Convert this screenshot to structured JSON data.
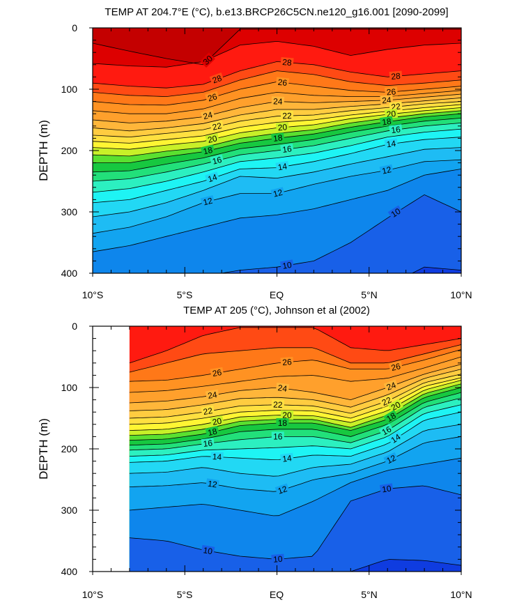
{
  "colors": {
    "fill_levels": [
      {
        "min": 30,
        "color": "#c40000"
      },
      {
        "min": 29,
        "color": "#dd0000"
      },
      {
        "min": 28,
        "color": "#ff1a10"
      },
      {
        "min": 27,
        "color": "#ff4a14"
      },
      {
        "min": 26,
        "color": "#ff7818"
      },
      {
        "min": 25,
        "color": "#ff9222"
      },
      {
        "min": 24,
        "color": "#ffa02c"
      },
      {
        "min": 23,
        "color": "#ffb63a"
      },
      {
        "min": 22,
        "color": "#ffcc40"
      },
      {
        "min": 21,
        "color": "#ffe040"
      },
      {
        "min": 20,
        "color": "#fff533"
      },
      {
        "min": 19,
        "color": "#c8f028"
      },
      {
        "min": 18,
        "color": "#5ae030"
      },
      {
        "min": 17,
        "color": "#17c840"
      },
      {
        "min": 16,
        "color": "#22e07a"
      },
      {
        "min": 15,
        "color": "#2cf0c0"
      },
      {
        "min": 14,
        "color": "#1ef4f4"
      },
      {
        "min": 13,
        "color": "#22d8f4"
      },
      {
        "min": 12,
        "color": "#1ebcf4"
      },
      {
        "min": 11,
        "color": "#12a4f0"
      },
      {
        "min": 10,
        "color": "#0e86ec"
      },
      {
        "min": 9,
        "color": "#1860e8"
      },
      {
        "min": 0,
        "color": "#0f3ce0"
      }
    ],
    "contour_line": "#000000"
  },
  "chart_data": [
    {
      "type": "contour",
      "title": "TEMP AT 204.7°E (°C), b.e13.BRCP26C5CN.ne120_g16.001 [2090-2099]",
      "ylabel": "DEPTH (m)",
      "xlabel": "",
      "x_ticks": [
        "10°S",
        "5°S",
        "EQ",
        "5°N",
        "10°N"
      ],
      "y_ticks": [
        "0",
        "100",
        "200",
        "300",
        "400"
      ],
      "xlim": [
        -10,
        10
      ],
      "ylim": [
        0,
        400
      ],
      "y_inverted": true,
      "data_start_lat": -10,
      "contour_interval": 1,
      "contour_label_values": [
        30,
        28,
        26,
        24,
        22,
        20,
        18,
        16,
        14,
        12,
        10
      ],
      "isotherm_depths": {
        "lat": [
          -10,
          -8,
          -6,
          -4,
          -2,
          0,
          2,
          4,
          6,
          8,
          10
        ],
        "levels": {
          "30": [
            25,
            38,
            50,
            60,
            2,
            2,
            2,
            2,
            2,
            2,
            2
          ],
          "29": [
            58,
            62,
            64,
            55,
            28,
            22,
            30,
            45,
            35,
            28,
            25
          ],
          "28": [
            90,
            95,
            98,
            92,
            70,
            55,
            60,
            72,
            80,
            75,
            70
          ],
          "27": [
            105,
            110,
            112,
            105,
            85,
            70,
            76,
            88,
            94,
            90,
            85
          ],
          "26": [
            120,
            125,
            126,
            118,
            100,
            88,
            95,
            102,
            105,
            100,
            95
          ],
          "25": [
            135,
            140,
            140,
            132,
            115,
            105,
            110,
            112,
            112,
            107,
            102
          ],
          "24": [
            150,
            155,
            152,
            145,
            130,
            120,
            122,
            120,
            118,
            113,
            108
          ],
          "23": [
            163,
            168,
            163,
            156,
            142,
            133,
            133,
            128,
            124,
            119,
            114
          ],
          "22": [
            175,
            178,
            172,
            166,
            152,
            144,
            142,
            135,
            130,
            124,
            120
          ],
          "21": [
            185,
            188,
            182,
            176,
            162,
            154,
            150,
            142,
            136,
            130,
            125
          ],
          "20": [
            195,
            198,
            191,
            185,
            171,
            163,
            158,
            148,
            141,
            135,
            130
          ],
          "19": [
            207,
            209,
            201,
            195,
            180,
            172,
            166,
            155,
            147,
            140,
            135
          ],
          "18": [
            220,
            220,
            210,
            202,
            188,
            180,
            173,
            162,
            153,
            145,
            140
          ],
          "17": [
            235,
            233,
            222,
            212,
            197,
            190,
            182,
            170,
            160,
            152,
            147
          ],
          "16": [
            250,
            246,
            235,
            222,
            207,
            200,
            192,
            180,
            168,
            160,
            155
          ],
          "15": [
            268,
            262,
            250,
            235,
            218,
            212,
            204,
            192,
            178,
            170,
            165
          ],
          "14": [
            285,
            280,
            265,
            250,
            230,
            228,
            218,
            205,
            190,
            182,
            178
          ],
          "13": [
            308,
            300,
            285,
            265,
            242,
            245,
            235,
            222,
            210,
            198,
            195
          ],
          "12": [
            335,
            325,
            308,
            285,
            270,
            270,
            255,
            242,
            232,
            218,
            215
          ],
          "11": [
            365,
            355,
            340,
            325,
            310,
            305,
            295,
            280,
            265,
            240,
            230
          ],
          "10": [
            420,
            420,
            415,
            405,
            395,
            390,
            380,
            350,
            310,
            272,
            300
          ],
          "9": [
            450,
            450,
            450,
            450,
            450,
            450,
            450,
            450,
            420,
            390,
            395
          ]
        }
      }
    },
    {
      "type": "contour",
      "title": "TEMP AT 205 (°C), Johnson et al (2002)",
      "ylabel": "DEPTH (m)",
      "xlabel": "",
      "x_ticks": [
        "10°S",
        "5°S",
        "EQ",
        "5°N",
        "10°N"
      ],
      "y_ticks": [
        "0",
        "100",
        "200",
        "300",
        "400"
      ],
      "xlim": [
        -10,
        10
      ],
      "ylim": [
        0,
        400
      ],
      "y_inverted": true,
      "data_start_lat": -8,
      "contour_interval": 1,
      "contour_label_values": [
        26,
        24,
        22,
        20,
        18,
        16,
        14,
        12,
        10
      ],
      "isotherm_depths": {
        "lat": [
          -8,
          -6,
          -4,
          -2,
          0,
          2,
          4,
          6,
          8,
          10
        ],
        "levels": {
          "28": [
            60,
            40,
            15,
            2,
            2,
            2,
            35,
            40,
            30,
            20
          ],
          "27": [
            75,
            60,
            45,
            40,
            35,
            35,
            60,
            60,
            45,
            30
          ],
          "26": [
            90,
            88,
            80,
            70,
            60,
            55,
            70,
            70,
            55,
            38
          ],
          "25": [
            108,
            105,
            98,
            90,
            82,
            80,
            90,
            85,
            68,
            50
          ],
          "24": [
            125,
            122,
            115,
            105,
            100,
            108,
            120,
            100,
            78,
            62
          ],
          "23": [
            138,
            136,
            128,
            118,
            116,
            120,
            132,
            112,
            85,
            70
          ],
          "22": [
            150,
            148,
            140,
            130,
            128,
            130,
            142,
            122,
            92,
            78
          ],
          "21": [
            160,
            158,
            150,
            140,
            137,
            138,
            150,
            130,
            98,
            84
          ],
          "20": [
            170,
            168,
            160,
            148,
            145,
            146,
            157,
            138,
            104,
            88
          ],
          "19": [
            178,
            176,
            168,
            155,
            152,
            152,
            165,
            145,
            110,
            94
          ],
          "18": [
            186,
            184,
            176,
            162,
            158,
            158,
            170,
            152,
            116,
            100
          ],
          "17": [
            194,
            192,
            184,
            172,
            168,
            168,
            180,
            160,
            124,
            108
          ],
          "16": [
            202,
            200,
            192,
            185,
            180,
            180,
            190,
            170,
            132,
            117
          ],
          "15": [
            212,
            210,
            202,
            200,
            198,
            195,
            200,
            180,
            142,
            128
          ],
          "14": [
            222,
            220,
            212,
            215,
            218,
            210,
            212,
            192,
            153,
            140
          ],
          "13": [
            240,
            238,
            230,
            240,
            245,
            230,
            225,
            205,
            170,
            160
          ],
          "12": [
            262,
            260,
            255,
            265,
            270,
            250,
            240,
            220,
            190,
            180
          ],
          "11": [
            300,
            295,
            290,
            300,
            310,
            285,
            255,
            235,
            225,
            215
          ],
          "10": [
            345,
            350,
            365,
            375,
            380,
            375,
            285,
            265,
            260,
            275
          ],
          "9": [
            400,
            400,
            400,
            400,
            400,
            400,
            400,
            380,
            382,
            390
          ]
        }
      }
    }
  ]
}
